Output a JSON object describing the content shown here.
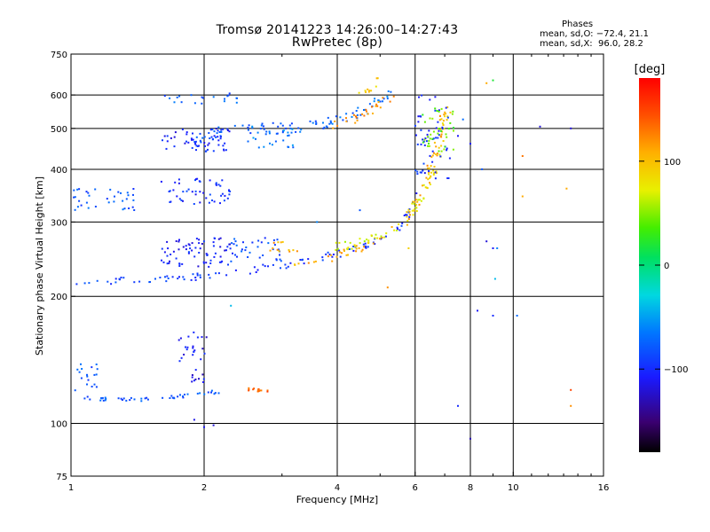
{
  "title_line1": "Tromsø 20141223 14:26:00–14:27:43",
  "title_line2": "RwPretec (8p)",
  "stats": {
    "header": "Phases",
    "line_o": "mean, sd,O: −72.4, 21.1",
    "line_x": "mean, sd,X:  96.0, 28.2"
  },
  "colorbar": {
    "label": "[deg]",
    "range": [
      -180,
      180
    ],
    "ticks": [
      {
        "value": 100,
        "label": "100"
      },
      {
        "value": 0,
        "label": "0"
      },
      {
        "value": -100,
        "label": "−100"
      }
    ]
  },
  "chart_data": {
    "type": "scatter",
    "title": "Tromsø 20141223 14:26:00–14:27:43",
    "subtitle": "RwPretec (8p)",
    "xlabel": "Frequency [MHz]",
    "ylabel": "Stationary phase Virtual Height [km]",
    "xscale": "log2",
    "yscale": "log",
    "xlim": [
      1,
      16
    ],
    "ylim": [
      75,
      750
    ],
    "xticks": [
      {
        "value": 1,
        "label": "1"
      },
      {
        "value": 2,
        "label": "2"
      },
      {
        "value": 4,
        "label": "4"
      },
      {
        "value": 6,
        "label": "6"
      },
      {
        "value": 8,
        "label": "8"
      },
      {
        "value": 10,
        "label": "10"
      },
      {
        "value": 16,
        "label": "16"
      }
    ],
    "yticks": [
      {
        "value": 75,
        "label": "75"
      },
      {
        "value": 100,
        "label": "100"
      },
      {
        "value": 200,
        "label": "200"
      },
      {
        "value": 300,
        "label": "300"
      },
      {
        "value": 400,
        "label": "400"
      },
      {
        "value": 500,
        "label": "500"
      },
      {
        "value": 600,
        "label": "600"
      },
      {
        "value": 750,
        "label": "750"
      }
    ],
    "gridlines_x": [
      2,
      4,
      6,
      8,
      10
    ],
    "gridlines_y": [
      100,
      200,
      300,
      400,
      500,
      600
    ],
    "grid": true,
    "color_scale": "phase (deg), rainbow from -180 (black/violet) to 180 (red)",
    "traces": [
      {
        "kind": "curve",
        "pts": [
          [
            1.0,
            215
          ],
          [
            1.2,
            217
          ],
          [
            1.5,
            218
          ],
          [
            2.0,
            223
          ],
          [
            2.5,
            230
          ],
          [
            3.0,
            237
          ],
          [
            3.5,
            245
          ],
          [
            4.0,
            252
          ],
          [
            4.5,
            262
          ],
          [
            5.0,
            272
          ],
          [
            5.5,
            290
          ],
          [
            5.8,
            315
          ],
          [
            6.0,
            340
          ],
          [
            6.1,
            370
          ],
          [
            6.2,
            410
          ],
          [
            6.3,
            450
          ],
          [
            6.4,
            500
          ]
        ],
        "phase_start": -90,
        "phase_end": -100,
        "n": 110,
        "spread": 4
      },
      {
        "kind": "curve",
        "pts": [
          [
            3.2,
            238
          ],
          [
            3.8,
            245
          ],
          [
            4.3,
            255
          ],
          [
            4.8,
            267
          ],
          [
            5.3,
            282
          ],
          [
            5.7,
            300
          ],
          [
            6.0,
            325
          ],
          [
            6.2,
            350
          ],
          [
            6.4,
            380
          ],
          [
            6.6,
            420
          ],
          [
            6.8,
            470
          ],
          [
            6.9,
            520
          ],
          [
            7.0,
            560
          ]
        ],
        "phase_start": 110,
        "phase_end": 110,
        "n": 70,
        "spread": 4
      },
      {
        "kind": "curve",
        "pts": [
          [
            4.0,
            262
          ],
          [
            4.6,
            270
          ],
          [
            5.2,
            282
          ],
          [
            5.6,
            295
          ],
          [
            5.9,
            315
          ],
          [
            6.2,
            340
          ],
          [
            6.5,
            380
          ],
          [
            6.7,
            420
          ],
          [
            6.9,
            470
          ],
          [
            7.0,
            520
          ],
          [
            7.1,
            560
          ]
        ],
        "phase_start": 65,
        "phase_end": 90,
        "n": 80,
        "spread": 5
      },
      {
        "kind": "curve",
        "pts": [
          [
            1.8,
            470
          ],
          [
            2.2,
            490
          ],
          [
            2.6,
            500
          ],
          [
            3.0,
            500
          ],
          [
            3.5,
            505
          ],
          [
            4.0,
            520
          ],
          [
            4.5,
            545
          ],
          [
            5.0,
            580
          ],
          [
            5.3,
            610
          ]
        ],
        "phase_start": -80,
        "phase_end": -70,
        "n": 90,
        "spread": 6
      },
      {
        "kind": "curve",
        "pts": [
          [
            3.8,
            500
          ],
          [
            4.2,
            520
          ],
          [
            4.6,
            540
          ],
          [
            5.0,
            565
          ],
          [
            5.3,
            590
          ]
        ],
        "phase_start": 120,
        "phase_end": 120,
        "n": 25,
        "spread": 5
      },
      {
        "kind": "curve",
        "pts": [
          [
            4.5,
            610
          ],
          [
            4.8,
            630
          ],
          [
            5.0,
            645
          ]
        ],
        "phase_start": 95,
        "phase_end": 95,
        "n": 10,
        "spread": 5
      },
      {
        "kind": "curve",
        "pts": [
          [
            1.05,
            115
          ],
          [
            1.2,
            114
          ],
          [
            1.5,
            114
          ],
          [
            1.8,
            116
          ],
          [
            2.0,
            118
          ],
          [
            2.2,
            119
          ]
        ],
        "phase_start": -80,
        "phase_end": -80,
        "n": 45,
        "spread": 2
      },
      {
        "kind": "curve",
        "pts": [
          [
            2.5,
            121
          ],
          [
            2.6,
            120
          ],
          [
            2.8,
            120
          ]
        ],
        "phase_start": 140,
        "phase_end": 140,
        "n": 15,
        "spread": 2
      },
      {
        "kind": "cluster",
        "f": [
          1.02,
          1.15
        ],
        "h": [
          118,
          140
        ],
        "phase": -80,
        "n": 18
      },
      {
        "kind": "cluster",
        "f": [
          1.75,
          2.05
        ],
        "h": [
          140,
          165
        ],
        "phase": -110,
        "n": 22
      },
      {
        "kind": "cluster",
        "f": [
          1.85,
          2.0
        ],
        "h": [
          125,
          134
        ],
        "phase": -115,
        "n": 10
      },
      {
        "kind": "cluster",
        "f": [
          1.6,
          2.3
        ],
        "h": [
          235,
          275
        ],
        "phase": -105,
        "n": 70
      },
      {
        "kind": "cluster",
        "f": [
          2.3,
          3.0
        ],
        "h": [
          240,
          275
        ],
        "phase": -85,
        "n": 35
      },
      {
        "kind": "cluster",
        "f": [
          1.0,
          1.4
        ],
        "h": [
          320,
          360
        ],
        "phase": -80,
        "n": 35
      },
      {
        "kind": "cluster",
        "f": [
          1.6,
          2.3
        ],
        "h": [
          330,
          380
        ],
        "phase": -100,
        "n": 50
      },
      {
        "kind": "cluster",
        "f": [
          1.6,
          2.3
        ],
        "h": [
          440,
          500
        ],
        "phase": -105,
        "n": 55
      },
      {
        "kind": "cluster",
        "f": [
          2.5,
          3.2
        ],
        "h": [
          450,
          510
        ],
        "phase": -65,
        "n": 25
      },
      {
        "kind": "cluster",
        "f": [
          1.6,
          2.4
        ],
        "h": [
          570,
          605
        ],
        "phase": -80,
        "n": 20
      },
      {
        "kind": "cluster",
        "f": [
          6.0,
          7.2
        ],
        "h": [
          380,
          600
        ],
        "phase": -100,
        "n": 45
      },
      {
        "kind": "cluster",
        "f": [
          6.2,
          7.4
        ],
        "h": [
          440,
          560
        ],
        "phase": 40,
        "n": 35
      },
      {
        "kind": "cluster",
        "f": [
          2.8,
          3.3
        ],
        "h": [
          255,
          270
        ],
        "phase": 110,
        "n": 12
      },
      {
        "kind": "scatter",
        "points": [
          [
            3.6,
            300,
            -60
          ],
          [
            4.5,
            320,
            -80
          ],
          [
            2.3,
            190,
            -40
          ],
          [
            2.0,
            98,
            -110
          ],
          [
            1.9,
            102,
            -115
          ],
          [
            2.1,
            99,
            -120
          ],
          [
            7.5,
            110,
            -100
          ],
          [
            8.0,
            92,
            -130
          ],
          [
            8.3,
            185,
            -110
          ],
          [
            9.0,
            180,
            -100
          ],
          [
            10.2,
            180,
            -70
          ],
          [
            10.5,
            345,
            110
          ],
          [
            13.5,
            120,
            150
          ],
          [
            13.5,
            110,
            120
          ],
          [
            13.2,
            360,
            110
          ],
          [
            11.5,
            505,
            -120
          ],
          [
            13.5,
            500,
            -120
          ],
          [
            9.0,
            650,
            20
          ],
          [
            8.7,
            640,
            110
          ],
          [
            10.5,
            430,
            130
          ],
          [
            7.5,
            480,
            -110
          ],
          [
            8.0,
            460,
            -110
          ],
          [
            7.7,
            525,
            -70
          ],
          [
            8.5,
            400,
            -80
          ],
          [
            5.2,
            210,
            120
          ],
          [
            5.8,
            260,
            90
          ],
          [
            9.0,
            260,
            -110
          ],
          [
            9.2,
            260,
            -60
          ],
          [
            8.7,
            270,
            -120
          ],
          [
            9.1,
            220,
            -40
          ]
        ]
      }
    ]
  }
}
